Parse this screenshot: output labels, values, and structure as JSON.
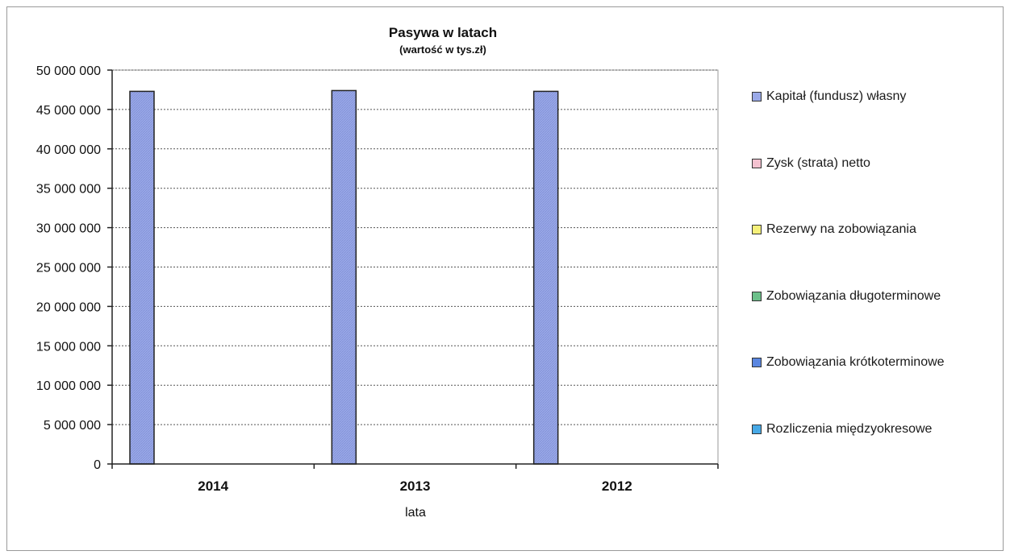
{
  "chart_data": {
    "type": "bar",
    "title": "Pasywa  w latach",
    "subtitle": "(wartość w tys.zł)",
    "xlabel": "lata",
    "ylabel": "",
    "ylim": [
      0,
      50000000
    ],
    "yticks": [
      "0",
      "5 000 000",
      "10 000 000",
      "15 000 000",
      "20 000 000",
      "25 000 000",
      "30 000 000",
      "35 000 000",
      "40 000 000",
      "45 000 000",
      "50 000 000"
    ],
    "ytick_values": [
      0,
      5000000,
      10000000,
      15000000,
      20000000,
      25000000,
      30000000,
      35000000,
      40000000,
      45000000,
      50000000
    ],
    "categories": [
      "2014",
      "2013",
      "2012"
    ],
    "grid": true,
    "legend_position": "right",
    "series": [
      {
        "name": "Kapitał (fundusz) własny",
        "color": "#9aa9e8",
        "values": [
          47300000,
          47400000,
          47300000
        ]
      },
      {
        "name": "Zysk (strata) netto",
        "color": "#f4c2d0",
        "values": [
          0,
          0,
          0
        ]
      },
      {
        "name": "Rezerwy na zobowiązania",
        "color": "#f5f07a",
        "values": [
          0,
          0,
          0
        ]
      },
      {
        "name": "Zobowiązania długoterminowe",
        "color": "#6cc08a",
        "values": [
          0,
          0,
          0
        ]
      },
      {
        "name": "Zobowiązania krótkoterminowe",
        "color": "#5a86e0",
        "values": [
          0,
          0,
          0
        ]
      },
      {
        "name": "Rozliczenia międzyokresowe",
        "color": "#47a9e6",
        "values": [
          0,
          0,
          0
        ]
      }
    ]
  }
}
